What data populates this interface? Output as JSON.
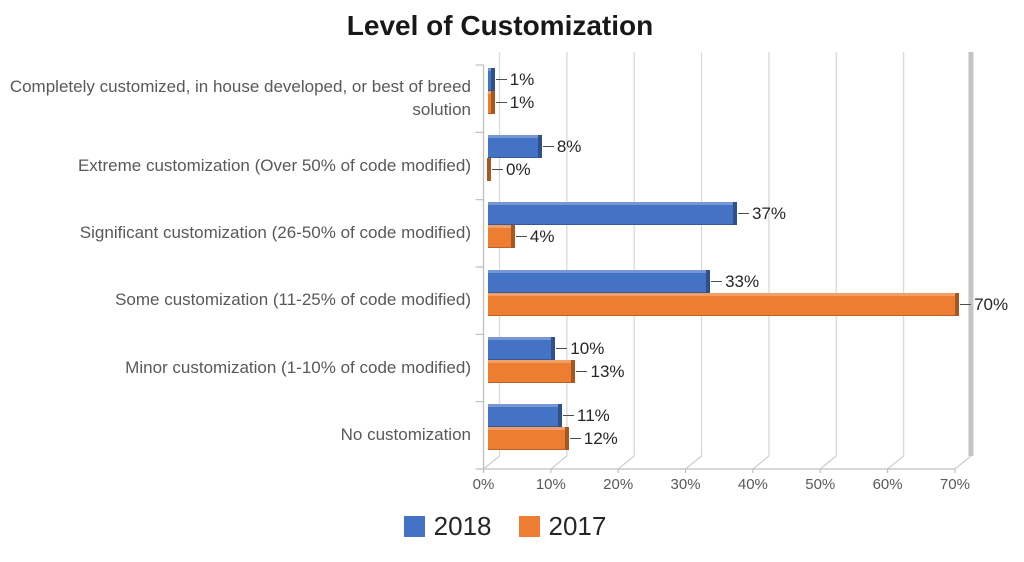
{
  "title": "Level of Customization",
  "chart_data": {
    "type": "bar",
    "orientation": "horizontal",
    "title": "Level of Customization",
    "style": "3d",
    "grid": true,
    "legend_position": "bottom",
    "xlabel": "",
    "ylabel": "",
    "xlim": [
      0,
      70
    ],
    "x_ticks": [
      "0%",
      "10%",
      "20%",
      "30%",
      "40%",
      "50%",
      "60%",
      "70%"
    ],
    "categories": [
      "Completely customized, in house developed, or best of breed solution",
      "Extreme customization (Over 50% of code modified)",
      "Significant customization (26-50% of code modified)",
      "Some customization (11-25% of code modified)",
      "Minor customization (1-10% of code modified)",
      "No customization"
    ],
    "series": [
      {
        "name": "2018",
        "color": "#4472C4",
        "values": [
          1,
          8,
          37,
          33,
          10,
          11
        ],
        "labels": [
          "1%",
          "8%",
          "37%",
          "33%",
          "10%",
          "11%"
        ]
      },
      {
        "name": "2017",
        "color": "#ED7D31",
        "values": [
          1,
          0,
          4,
          70,
          13,
          12
        ],
        "labels": [
          "1%",
          "0%",
          "4%",
          "70%",
          "13%",
          "12%"
        ]
      }
    ]
  },
  "legend": {
    "items": [
      {
        "label": "2018",
        "color": "#4472C4"
      },
      {
        "label": "2017",
        "color": "#ED7D31"
      }
    ]
  },
  "palette": {
    "gridline": "#D9D9D9",
    "wall": "#C5C5C5",
    "axis": "#BFBFBF",
    "category_text": "#595959",
    "value_text": "#262626"
  }
}
